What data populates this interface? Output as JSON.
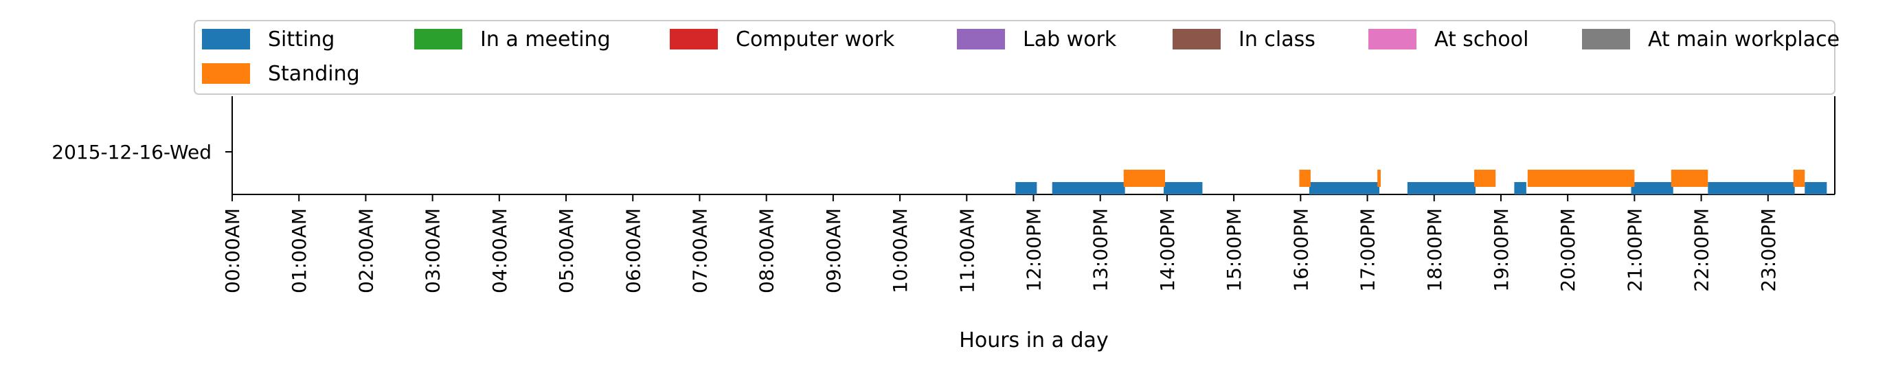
{
  "chart_data": {
    "type": "bar",
    "orientation": "horizontal-timeline",
    "title": "",
    "xlabel": "Hours in a day",
    "ylabel": "",
    "xlim": [
      0,
      24
    ],
    "x_ticks": [
      "00:00AM",
      "01:00AM",
      "02:00AM",
      "03:00AM",
      "04:00AM",
      "05:00AM",
      "06:00AM",
      "07:00AM",
      "08:00AM",
      "09:00AM",
      "10:00AM",
      "11:00AM",
      "12:00PM",
      "13:00PM",
      "14:00PM",
      "15:00PM",
      "16:00PM",
      "17:00PM",
      "18:00PM",
      "19:00PM",
      "20:00PM",
      "21:00PM",
      "22:00PM",
      "23:00PM"
    ],
    "y_categories": [
      "2015-12-16-Wed"
    ],
    "legend_position": "top",
    "grid": false,
    "series": [
      {
        "name": "Sitting",
        "color": "#1f77b4",
        "segments": [
          [
            11.73,
            12.05
          ],
          [
            12.28,
            13.37
          ],
          [
            13.95,
            14.53
          ],
          [
            16.13,
            17.18
          ],
          [
            17.6,
            18.62
          ],
          [
            19.2,
            19.38
          ],
          [
            20.95,
            21.58
          ],
          [
            22.1,
            23.4
          ],
          [
            23.55,
            23.88
          ]
        ]
      },
      {
        "name": "Standing",
        "color": "#ff7f0e",
        "segments": [
          [
            13.35,
            13.97
          ],
          [
            15.98,
            16.15
          ],
          [
            17.15,
            17.2
          ],
          [
            18.6,
            18.92
          ],
          [
            19.4,
            21.0
          ],
          [
            21.55,
            22.1
          ],
          [
            23.38,
            23.55
          ]
        ]
      },
      {
        "name": "In a meeting",
        "color": "#2ca02c",
        "segments": []
      },
      {
        "name": "Computer work",
        "color": "#d62728",
        "segments": []
      },
      {
        "name": "Lab work",
        "color": "#9467bd",
        "segments": []
      },
      {
        "name": "In class",
        "color": "#8c564b",
        "segments": []
      },
      {
        "name": "At school",
        "color": "#e377c2",
        "segments": []
      },
      {
        "name": "At main workplace",
        "color": "#7f7f7f",
        "segments": []
      }
    ]
  }
}
